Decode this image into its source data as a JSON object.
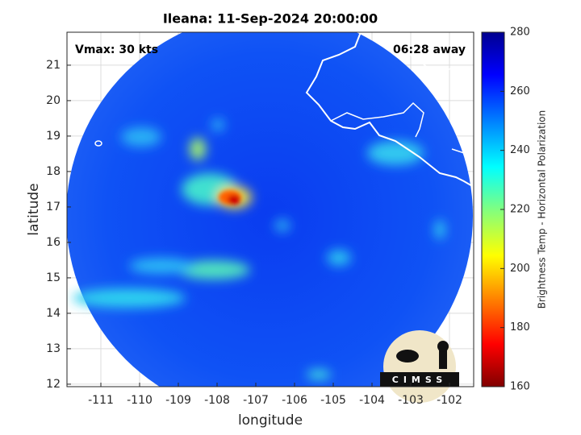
{
  "title": "Ileana: 11-Sep-2024 20:00:00",
  "xlabel": "longitude",
  "ylabel": "latitude",
  "annotations": [
    "Vmax: 30 kts",
    "06:28 away"
  ],
  "xlim": [
    -111.875,
    -101.375
  ],
  "ylim": [
    11.93,
    21.93
  ],
  "xticks": [
    -111,
    -110,
    -109,
    -108,
    -107,
    -106,
    -105,
    -104,
    -103,
    -102
  ],
  "yticks": [
    12,
    13,
    14,
    15,
    16,
    17,
    18,
    19,
    20,
    21
  ],
  "grid": true,
  "colorbar": {
    "label": "Brightness Temp - Horizontal Polarization",
    "lim": [
      160,
      280
    ],
    "ticks": [
      160,
      180,
      200,
      220,
      240,
      260,
      280
    ],
    "colormap": "jet"
  },
  "logo": "CIMSS"
}
